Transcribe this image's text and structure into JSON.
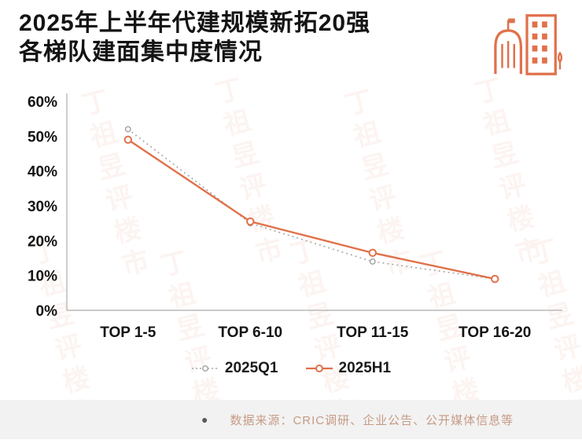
{
  "title": {
    "line1": "2025年上半年代建规模新拓20强",
    "line2": "各梯队建面集中度情况"
  },
  "watermark": "丁祖昱评楼市",
  "colors": {
    "accent": "#E0714B",
    "gray_series": "#A6A6A6",
    "title_text": "#141414",
    "axis": "#B9B9B9",
    "footer_bg": "#F2F2F2",
    "footer_text": "#C79B85",
    "footer_bullet": "#595959"
  },
  "chart_data": {
    "type": "line",
    "categories": [
      "TOP 1-5",
      "TOP 6-10",
      "TOP 11-15",
      "TOP 16-20"
    ],
    "series": [
      {
        "name": "2025Q1",
        "values": [
          52,
          25,
          14,
          9
        ],
        "color": "#A6A6A6",
        "style": "dotted"
      },
      {
        "name": "2025H1",
        "values": [
          49,
          25.5,
          16.5,
          9
        ],
        "color": "#E0714B",
        "style": "solid"
      }
    ],
    "ylim": [
      0,
      60
    ],
    "ytick_step": 10,
    "ytick_format": "percent",
    "grid": false,
    "legend_position": "bottom"
  },
  "footer": {
    "bullet": "●",
    "text": "数据来源：CRIC调研、企业公告、公开媒体信息等"
  }
}
